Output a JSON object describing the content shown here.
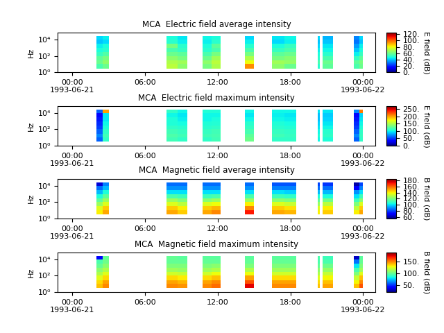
{
  "chart_data": [
    {
      "type": "heatmap",
      "title": "MCA  Electric field average intensity",
      "ylabel": "Hz",
      "colorbar_label": "E field (dB)",
      "log": "y",
      "xlim": [
        "1993-06-20T22:48",
        "1993-06-22T01:00"
      ],
      "xticks": [
        {
          "value": "1993-06-21T00:00",
          "label": "00:00\n1993-06-21"
        },
        {
          "value": "1993-06-21T06:00",
          "label": "06:00"
        },
        {
          "value": "1993-06-21T12:00",
          "label": "12:00"
        },
        {
          "value": "1993-06-21T18:00",
          "label": "18:00"
        },
        {
          "value": "1993-06-22T00:00",
          "label": "00:00\n1993-06-22"
        }
      ],
      "ylim": [
        1,
        70000
      ],
      "yticks": [
        {
          "value": 1,
          "label": "10⁰"
        },
        {
          "value": 100,
          "label": "10²"
        },
        {
          "value": 10000,
          "label": "10⁴"
        }
      ],
      "x_edges": [
        "1993-06-21T02:00",
        "1993-06-21T02:30",
        "1993-06-21T03:00",
        "1993-06-21T07:45",
        "1993-06-21T08:40",
        "1993-06-21T09:30",
        "1993-06-21T10:45",
        "1993-06-21T11:30",
        "1993-06-21T12:15",
        "1993-06-21T14:15",
        "1993-06-21T15:00",
        "1993-06-21T16:30",
        "1993-06-21T17:30",
        "1993-06-21T18:30",
        "1993-06-21T20:15",
        "1993-06-21T20:25",
        "1993-06-21T20:40",
        "1993-06-21T21:30",
        "1993-06-21T23:15",
        "1993-06-21T23:40",
        "1993-06-22T00:00"
      ],
      "y_edges": [
        3,
        10,
        30,
        100,
        300,
        1000,
        3000,
        10000,
        25000
      ],
      "clim": [
        0,
        125
      ],
      "cticks": [
        {
          "value": 0,
          "label": "0."
        },
        {
          "value": 20,
          "label": "20."
        },
        {
          "value": 40,
          "label": "40."
        },
        {
          "value": 60,
          "label": "60."
        },
        {
          "value": 80,
          "label": "80."
        },
        {
          "value": 100,
          "label": "100."
        },
        {
          "value": 120,
          "label": "120."
        }
      ],
      "cells": [
        [
          55,
          60,
          null,
          72,
          65,
          null,
          62,
          70,
          null,
          95,
          null,
          65,
          60,
          null,
          50,
          null,
          58,
          null,
          55,
          60
        ],
        [
          60,
          65,
          null,
          70,
          68,
          null,
          65,
          72,
          null,
          80,
          null,
          68,
          66,
          null,
          55,
          null,
          60,
          null,
          58,
          62
        ],
        [
          58,
          62,
          null,
          65,
          62,
          null,
          60,
          68,
          null,
          70,
          null,
          62,
          64,
          null,
          50,
          null,
          55,
          null,
          52,
          58
        ],
        [
          52,
          56,
          null,
          60,
          58,
          null,
          55,
          62,
          null,
          62,
          null,
          58,
          60,
          null,
          48,
          null,
          50,
          null,
          45,
          52
        ],
        [
          48,
          50,
          null,
          55,
          52,
          null,
          50,
          55,
          null,
          55,
          null,
          52,
          55,
          null,
          45,
          null,
          46,
          null,
          40,
          48
        ],
        [
          45,
          48,
          null,
          62,
          50,
          null,
          48,
          58,
          null,
          50,
          null,
          48,
          52,
          null,
          42,
          null,
          44,
          null,
          35,
          45
        ],
        [
          40,
          42,
          null,
          50,
          45,
          null,
          45,
          50,
          null,
          45,
          null,
          42,
          45,
          null,
          40,
          null,
          40,
          null,
          30,
          40
        ],
        [
          42,
          45,
          null,
          48,
          44,
          null,
          46,
          48,
          null,
          42,
          null,
          44,
          46,
          null,
          42,
          null,
          38,
          null,
          32,
          42
        ]
      ]
    },
    {
      "type": "heatmap",
      "title": "MCA  Electric field maximum intensity",
      "ylabel": "Hz",
      "colorbar_label": "E field (dB)",
      "log": "y",
      "xlim": [
        "1993-06-20T22:48",
        "1993-06-22T01:00"
      ],
      "xticks": [
        {
          "value": "1993-06-21T00:00",
          "label": "00:00\n1993-06-21"
        },
        {
          "value": "1993-06-21T06:00",
          "label": "06:00"
        },
        {
          "value": "1993-06-21T12:00",
          "label": "12:00"
        },
        {
          "value": "1993-06-21T18:00",
          "label": "18:00"
        },
        {
          "value": "1993-06-22T00:00",
          "label": "00:00\n1993-06-22"
        }
      ],
      "ylim": [
        1,
        70000
      ],
      "yticks": [
        {
          "value": 1,
          "label": "10⁰"
        },
        {
          "value": 100,
          "label": "10²"
        },
        {
          "value": 10000,
          "label": "10⁴"
        }
      ],
      "x_edges": [
        "1993-06-21T02:00",
        "1993-06-21T02:30",
        "1993-06-21T03:00",
        "1993-06-21T07:45",
        "1993-06-21T08:40",
        "1993-06-21T09:30",
        "1993-06-21T10:45",
        "1993-06-21T11:30",
        "1993-06-21T12:15",
        "1993-06-21T14:15",
        "1993-06-21T15:00",
        "1993-06-21T16:30",
        "1993-06-21T17:30",
        "1993-06-21T18:30",
        "1993-06-21T20:15",
        "1993-06-21T20:25",
        "1993-06-21T20:40",
        "1993-06-21T21:30",
        "1993-06-21T23:15",
        "1993-06-21T23:40",
        "1993-06-22T00:00"
      ],
      "y_edges": [
        3,
        10,
        30,
        100,
        300,
        1000,
        3000,
        10000,
        25000
      ],
      "clim": [
        0,
        270
      ],
      "cticks": [
        {
          "value": 0,
          "label": "0."
        },
        {
          "value": 50,
          "label": "50."
        },
        {
          "value": 100,
          "label": "100."
        },
        {
          "value": 150,
          "label": "150."
        },
        {
          "value": 200,
          "label": "200."
        },
        {
          "value": 250,
          "label": "250."
        }
      ],
      "cells": [
        [
          60,
          110,
          null,
          115,
          110,
          null,
          110,
          115,
          null,
          130,
          null,
          110,
          110,
          null,
          100,
          null,
          105,
          null,
          60,
          110
        ],
        [
          70,
          115,
          null,
          120,
          115,
          null,
          115,
          118,
          null,
          125,
          null,
          115,
          112,
          null,
          105,
          null,
          110,
          null,
          70,
          112
        ],
        [
          60,
          110,
          null,
          115,
          112,
          null,
          112,
          115,
          null,
          118,
          null,
          112,
          110,
          null,
          100,
          null,
          108,
          null,
          60,
          110
        ],
        [
          50,
          105,
          null,
          110,
          108,
          null,
          108,
          110,
          null,
          112,
          null,
          108,
          106,
          null,
          95,
          null,
          100,
          null,
          50,
          105
        ],
        [
          45,
          100,
          null,
          105,
          102,
          null,
          105,
          106,
          null,
          108,
          null,
          105,
          102,
          null,
          90,
          null,
          95,
          null,
          45,
          100
        ],
        [
          40,
          95,
          null,
          105,
          98,
          null,
          100,
          104,
          null,
          100,
          null,
          100,
          98,
          null,
          85,
          null,
          90,
          null,
          40,
          95
        ],
        [
          35,
          95,
          null,
          100,
          95,
          null,
          100,
          100,
          null,
          95,
          null,
          98,
          95,
          null,
          85,
          null,
          88,
          null,
          35,
          90
        ],
        [
          60,
          200,
          null,
          110,
          100,
          null,
          105,
          105,
          null,
          100,
          null,
          100,
          100,
          null,
          95,
          null,
          95,
          null,
          70,
          210
        ]
      ]
    },
    {
      "type": "heatmap",
      "title": "MCA  Magnetic field average intensity",
      "ylabel": "Hz",
      "colorbar_label": "B field (dB)",
      "log": "y",
      "xlim": [
        "1993-06-20T22:48",
        "1993-06-22T01:00"
      ],
      "xticks": [
        {
          "value": "1993-06-21T00:00",
          "label": "00:00\n1993-06-21"
        },
        {
          "value": "1993-06-21T06:00",
          "label": "06:00"
        },
        {
          "value": "1993-06-21T12:00",
          "label": "12:00"
        },
        {
          "value": "1993-06-21T18:00",
          "label": "18:00"
        },
        {
          "value": "1993-06-22T00:00",
          "label": "00:00\n1993-06-22"
        }
      ],
      "ylim": [
        1,
        70000
      ],
      "yticks": [
        {
          "value": 1,
          "label": "10⁰"
        },
        {
          "value": 100,
          "label": "10²"
        },
        {
          "value": 10000,
          "label": "10⁴"
        }
      ],
      "x_edges": [
        "1993-06-21T02:00",
        "1993-06-21T02:30",
        "1993-06-21T03:00",
        "1993-06-21T07:45",
        "1993-06-21T08:40",
        "1993-06-21T09:30",
        "1993-06-21T10:45",
        "1993-06-21T11:30",
        "1993-06-21T12:15",
        "1993-06-21T14:15",
        "1993-06-21T15:00",
        "1993-06-21T16:30",
        "1993-06-21T17:30",
        "1993-06-21T18:30",
        "1993-06-21T20:15",
        "1993-06-21T20:25",
        "1993-06-21T20:40",
        "1993-06-21T21:30",
        "1993-06-21T23:15",
        "1993-06-21T23:40",
        "1993-06-22T00:00"
      ],
      "y_edges": [
        3,
        10,
        30,
        100,
        300,
        1000,
        3000,
        10000,
        25000
      ],
      "clim": [
        55,
        185
      ],
      "cticks": [
        {
          "value": 60,
          "label": "60."
        },
        {
          "value": 80,
          "label": "80."
        },
        {
          "value": 100,
          "label": "100."
        },
        {
          "value": 120,
          "label": "120."
        },
        {
          "value": 140,
          "label": "140."
        },
        {
          "value": 160,
          "label": "160."
        },
        {
          "value": 180,
          "label": "180."
        }
      ],
      "cells": [
        [
          140,
          150,
          null,
          150,
          145,
          null,
          150,
          155,
          null,
          170,
          null,
          150,
          148,
          null,
          140,
          null,
          145,
          null,
          140,
          150
        ],
        [
          135,
          145,
          null,
          145,
          140,
          null,
          145,
          148,
          null,
          155,
          null,
          145,
          142,
          null,
          135,
          null,
          140,
          null,
          130,
          145
        ],
        [
          125,
          135,
          null,
          135,
          130,
          null,
          135,
          138,
          null,
          140,
          null,
          135,
          132,
          null,
          125,
          null,
          130,
          null,
          120,
          135
        ],
        [
          115,
          125,
          null,
          125,
          120,
          null,
          122,
          125,
          null,
          125,
          null,
          122,
          120,
          null,
          115,
          null,
          118,
          null,
          110,
          122
        ],
        [
          105,
          115,
          null,
          112,
          110,
          null,
          110,
          112,
          null,
          112,
          null,
          110,
          108,
          null,
          105,
          null,
          105,
          null,
          100,
          110
        ],
        [
          95,
          105,
          null,
          100,
          100,
          null,
          100,
          100,
          null,
          100,
          null,
          100,
          98,
          null,
          95,
          null,
          95,
          null,
          90,
          100
        ],
        [
          85,
          95,
          null,
          90,
          90,
          null,
          90,
          90,
          null,
          90,
          null,
          88,
          88,
          null,
          85,
          null,
          85,
          null,
          70,
          88
        ],
        [
          65,
          88,
          null,
          85,
          85,
          null,
          85,
          85,
          null,
          85,
          null,
          82,
          82,
          null,
          80,
          null,
          78,
          null,
          60,
          80
        ]
      ]
    },
    {
      "type": "heatmap",
      "title": "MCA  Magnetic field maximum intensity",
      "ylabel": "Hz",
      "colorbar_label": "B field (dB)",
      "log": "y",
      "xlim": [
        "1993-06-20T22:48",
        "1993-06-22T01:00"
      ],
      "xticks": [
        {
          "value": "1993-06-21T00:00",
          "label": "00:00\n1993-06-21"
        },
        {
          "value": "1993-06-21T06:00",
          "label": "06:00"
        },
        {
          "value": "1993-06-21T12:00",
          "label": "12:00"
        },
        {
          "value": "1993-06-21T18:00",
          "label": "18:00"
        },
        {
          "value": "1993-06-22T00:00",
          "label": "00:00\n1993-06-22"
        }
      ],
      "ylim": [
        1,
        70000
      ],
      "yticks": [
        {
          "value": 1,
          "label": "10⁰"
        },
        {
          "value": 100,
          "label": "10²"
        },
        {
          "value": 10000,
          "label": "10⁴"
        }
      ],
      "x_edges": [
        "1993-06-21T02:00",
        "1993-06-21T02:30",
        "1993-06-21T03:00",
        "1993-06-21T07:45",
        "1993-06-21T08:40",
        "1993-06-21T09:30",
        "1993-06-21T10:45",
        "1993-06-21T11:30",
        "1993-06-21T12:15",
        "1993-06-21T14:15",
        "1993-06-21T15:00",
        "1993-06-21T16:30",
        "1993-06-21T17:30",
        "1993-06-21T18:30",
        "1993-06-21T20:15",
        "1993-06-21T20:25",
        "1993-06-21T20:40",
        "1993-06-21T21:30",
        "1993-06-21T23:15",
        "1993-06-21T23:40",
        "1993-06-22T00:00"
      ],
      "y_edges": [
        3,
        10,
        30,
        100,
        300,
        1000,
        3000,
        10000,
        25000
      ],
      "clim": [
        20,
        190
      ],
      "cticks": [
        {
          "value": 50,
          "label": "50."
        },
        {
          "value": 100,
          "label": "100."
        },
        {
          "value": 150,
          "label": "150."
        }
      ],
      "cells": [
        [
          140,
          150,
          null,
          150,
          148,
          null,
          150,
          155,
          null,
          175,
          null,
          150,
          150,
          null,
          140,
          null,
          145,
          null,
          140,
          160
        ],
        [
          135,
          145,
          null,
          145,
          142,
          null,
          145,
          150,
          null,
          160,
          null,
          145,
          145,
          null,
          135,
          null,
          140,
          null,
          130,
          150
        ],
        [
          125,
          135,
          null,
          135,
          132,
          null,
          135,
          140,
          null,
          145,
          null,
          135,
          135,
          null,
          125,
          null,
          130,
          null,
          120,
          140
        ],
        [
          115,
          125,
          null,
          122,
          120,
          null,
          122,
          128,
          null,
          128,
          null,
          122,
          122,
          null,
          115,
          null,
          120,
          null,
          105,
          125
        ],
        [
          108,
          115,
          null,
          112,
          110,
          null,
          112,
          115,
          null,
          115,
          null,
          112,
          112,
          null,
          108,
          null,
          110,
          null,
          95,
          112
        ],
        [
          100,
          108,
          null,
          105,
          105,
          null,
          105,
          108,
          null,
          105,
          null,
          105,
          105,
          null,
          100,
          null,
          102,
          null,
          80,
          105
        ],
        [
          95,
          102,
          null,
          100,
          100,
          null,
          100,
          100,
          null,
          100,
          null,
          100,
          100,
          null,
          95,
          null,
          95,
          null,
          60,
          100
        ],
        [
          40,
          100,
          null,
          100,
          98,
          null,
          98,
          98,
          null,
          98,
          null,
          98,
          98,
          null,
          95,
          null,
          92,
          null,
          30,
          98
        ]
      ]
    }
  ]
}
